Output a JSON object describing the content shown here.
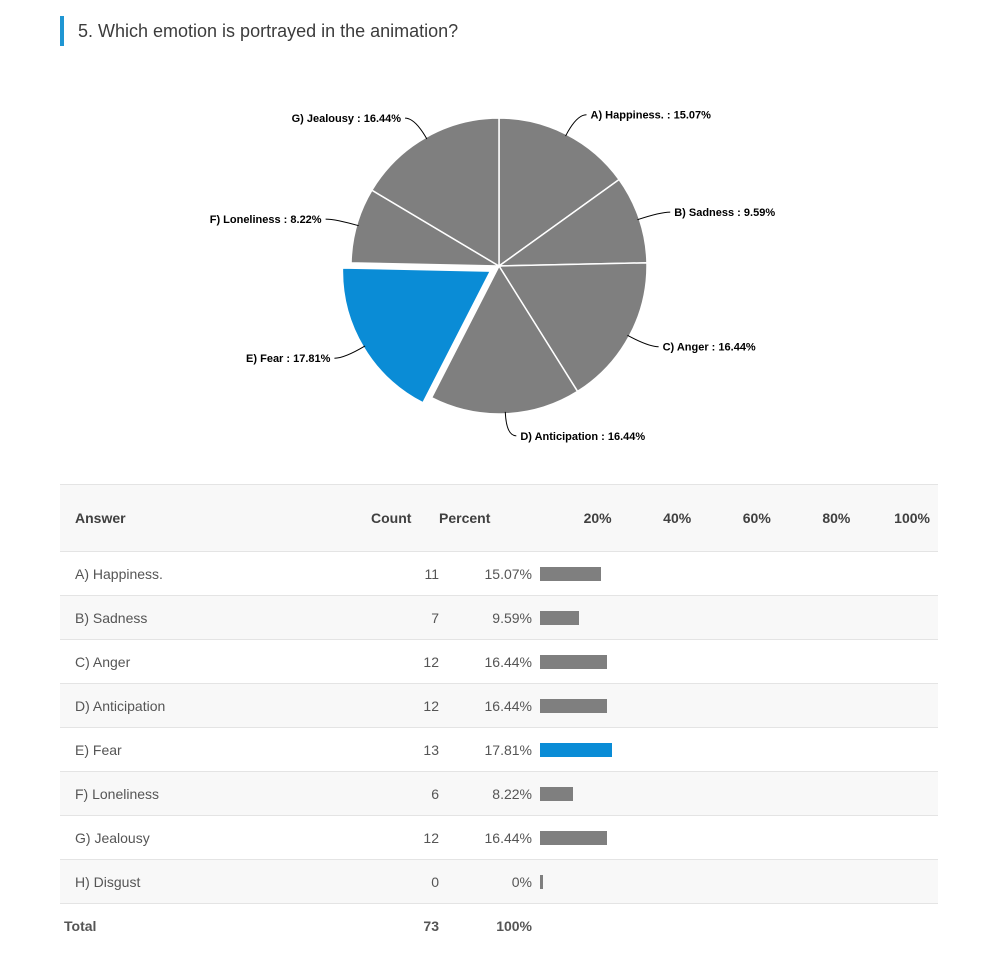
{
  "question": {
    "title": "5. Which emotion is portrayed in the animation?"
  },
  "colors": {
    "accent": "#1f96d3",
    "slice_default": "#7f7f7f",
    "slice_highlight": "#0a8cd6",
    "link": "#1c5fa8"
  },
  "table": {
    "headers": {
      "answer": "Answer",
      "count": "Count",
      "percent": "Percent",
      "scale": [
        "20%",
        "40%",
        "60%",
        "80%",
        "100%"
      ]
    },
    "rows": [
      {
        "answer": "A) Happiness.",
        "count": "11",
        "percent": "15.07%"
      },
      {
        "answer": "B) Sadness",
        "count": "7",
        "percent": "9.59%"
      },
      {
        "answer": "C) Anger",
        "count": "12",
        "percent": "16.44%"
      },
      {
        "answer": "D) Anticipation",
        "count": "12",
        "percent": "16.44%"
      },
      {
        "answer": "E) Fear",
        "count": "13",
        "percent": "17.81%"
      },
      {
        "answer": "F) Loneliness",
        "count": "6",
        "percent": "8.22%"
      },
      {
        "answer": "G) Jealousy",
        "count": "12",
        "percent": "16.44%"
      },
      {
        "answer": "H) Disgust",
        "count": "0",
        "percent": "0%"
      }
    ],
    "total": {
      "label": "Total",
      "count": "73",
      "percent": "100%"
    }
  },
  "chart_data": [
    {
      "type": "pie",
      "categories": [
        "A) Happiness.",
        "B) Sadness",
        "C) Anger",
        "D) Anticipation",
        "E) Fear",
        "F) Loneliness",
        "G) Jealousy"
      ],
      "values": [
        15.07,
        9.59,
        16.44,
        16.44,
        17.81,
        8.22,
        16.44
      ],
      "labels": [
        "A) Happiness. : 15.07%",
        "B) Sadness : 9.59%",
        "C) Anger : 16.44%",
        "D) Anticipation : 16.44%",
        "E) Fear : 17.81%",
        "F) Loneliness : 8.22%",
        "G) Jealousy : 16.44%"
      ],
      "highlighted": "E) Fear"
    },
    {
      "type": "bar",
      "orientation": "horizontal",
      "categories": [
        "A) Happiness.",
        "B) Sadness",
        "C) Anger",
        "D) Anticipation",
        "E) Fear",
        "F) Loneliness",
        "G) Jealousy",
        "H) Disgust"
      ],
      "values": [
        15.07,
        9.59,
        16.44,
        16.44,
        17.81,
        8.22,
        16.44,
        0
      ],
      "xlim": [
        0,
        100
      ],
      "highlighted": "E) Fear"
    }
  ]
}
